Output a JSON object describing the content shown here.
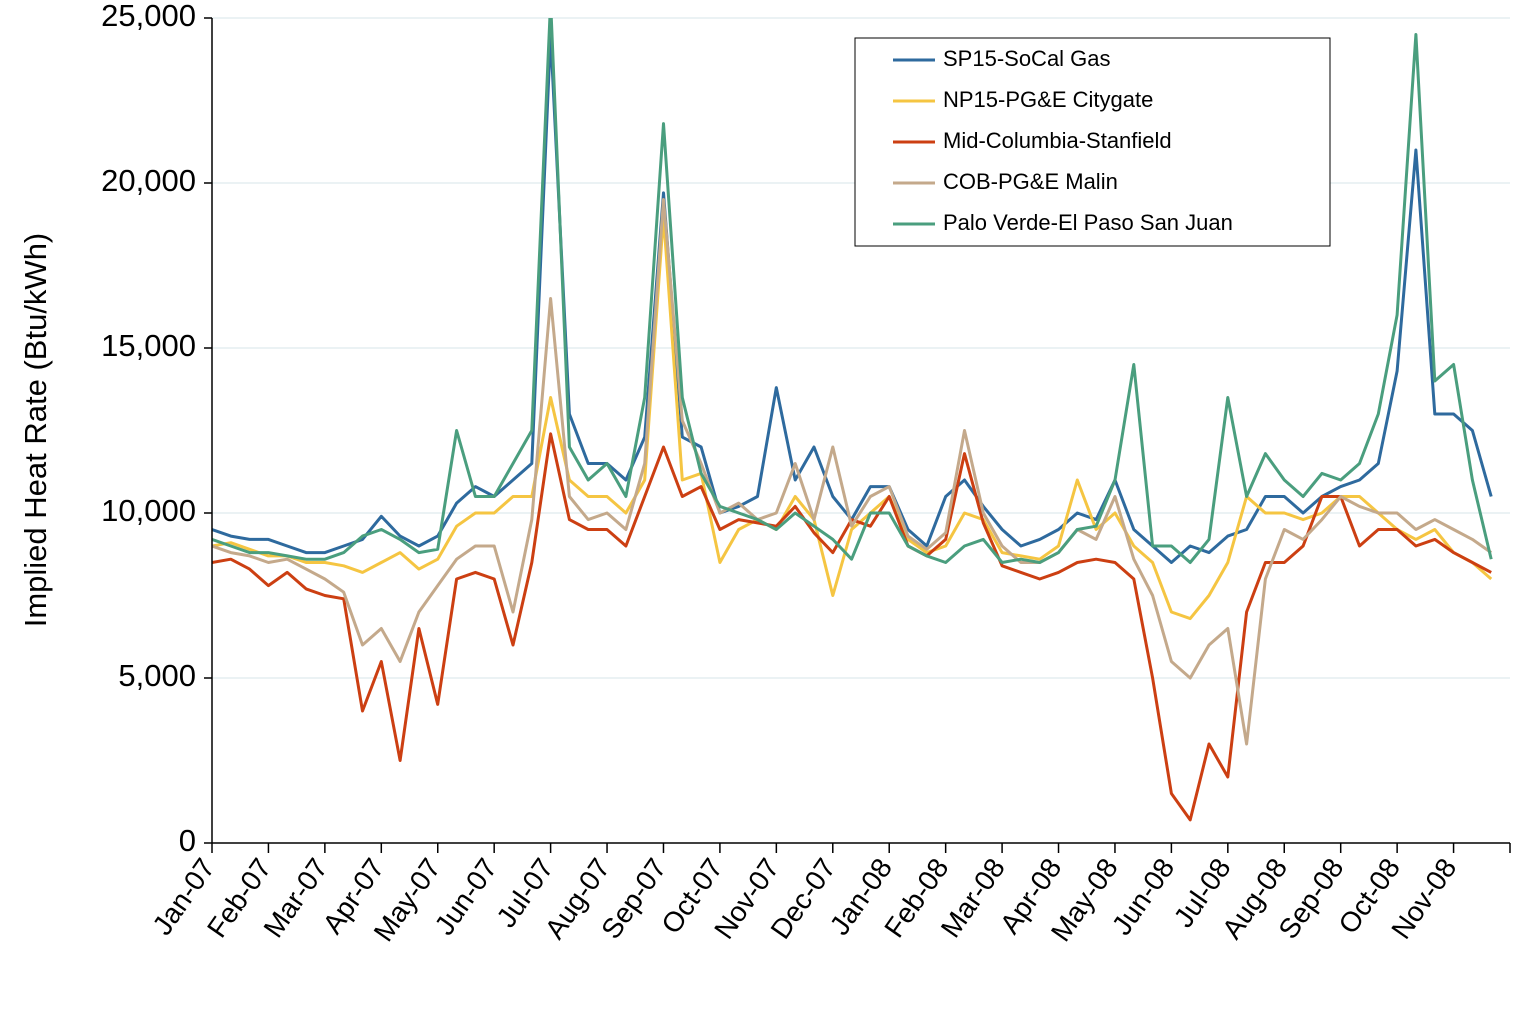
{
  "chart_data": {
    "type": "line",
    "y_label": "Implied Heat Rate (Btu/kWh)",
    "categories": [
      "Jan-07",
      null,
      null,
      "Feb-07",
      null,
      null,
      "Mar-07",
      null,
      null,
      "Apr-07",
      null,
      null,
      "May-07",
      null,
      null,
      "Jun-07",
      null,
      null,
      "Jul-07",
      null,
      null,
      "Aug-07",
      null,
      null,
      "Sep-07",
      null,
      null,
      "Oct-07",
      null,
      null,
      "Nov-07",
      null,
      null,
      "Dec-07",
      null,
      null,
      "Jan-08",
      null,
      null,
      "Feb-08",
      null,
      null,
      "Mar-08",
      null,
      null,
      "Apr-08",
      null,
      null,
      "May-08",
      null,
      null,
      "Jun-08",
      null,
      null,
      "Jul-08",
      null,
      null,
      "Aug-08",
      null,
      null,
      "Sep-08",
      null,
      null,
      "Oct-08",
      null,
      null,
      "Nov-08",
      null,
      null
    ],
    "ylim": [
      0,
      25000
    ],
    "yticks": [
      0,
      {
        "value": 5000,
        "label": "5,000"
      },
      {
        "value": 10000,
        "label": "10,000"
      },
      {
        "value": 15000,
        "label": "15,000"
      },
      {
        "value": 20000,
        "label": "20,000"
      },
      {
        "value": 25000,
        "label": "25,000"
      }
    ],
    "grid": true,
    "legend": "top-right",
    "series": [
      {
        "name": "SP15-SoCal Gas",
        "color": "#2e6a9e",
        "values": [
          9500,
          9300,
          9200,
          9200,
          9000,
          8800,
          8800,
          9000,
          9200,
          9900,
          9300,
          9000,
          9300,
          10300,
          10800,
          10500,
          11000,
          11500,
          24500,
          13000,
          11500,
          11500,
          11000,
          12300,
          19700,
          12300,
          12000,
          10000,
          10200,
          10500,
          13800,
          11000,
          12000,
          10500,
          9800,
          10800,
          10800,
          9500,
          9000,
          10500,
          11000,
          10200,
          9500,
          9000,
          9200,
          9500,
          10000,
          9800,
          11000,
          9500,
          9000,
          8500,
          9000,
          8800,
          9300,
          9500,
          10500,
          10500,
          10000,
          10500,
          10800,
          11000,
          11500,
          14300,
          21000,
          13000,
          13000,
          12500,
          10500
        ]
      },
      {
        "name": "NP15-PG&E Citygate",
        "color": "#f5c542",
        "values": [
          9000,
          9100,
          8900,
          8700,
          8700,
          8500,
          8500,
          8400,
          8200,
          8500,
          8800,
          8300,
          8600,
          9600,
          10000,
          10000,
          10500,
          10500,
          13500,
          11000,
          10500,
          10500,
          10000,
          11000,
          19000,
          11000,
          11200,
          8500,
          9500,
          9800,
          9500,
          10500,
          9800,
          7500,
          9500,
          10000,
          10500,
          9200,
          8800,
          9000,
          10000,
          9800,
          8800,
          8700,
          8600,
          9000,
          11000,
          9500,
          10000,
          9000,
          8500,
          7000,
          6800,
          7500,
          8500,
          10500,
          10000,
          10000,
          9800,
          10000,
          10500,
          10500,
          10000,
          9500,
          9200,
          9500,
          8800,
          8500,
          8000
        ]
      },
      {
        "name": "Mid-Columbia-Stanfield",
        "color": "#cc3f12",
        "values": [
          8500,
          8600,
          8300,
          7800,
          8200,
          7700,
          7500,
          7400,
          4000,
          5500,
          2500,
          6500,
          4200,
          8000,
          8200,
          8000,
          6000,
          8500,
          12400,
          9800,
          9500,
          9500,
          9000,
          10500,
          12000,
          10500,
          10800,
          9500,
          9800,
          9700,
          9600,
          10200,
          9400,
          8800,
          9800,
          9600,
          10500,
          9000,
          8700,
          9200,
          11800,
          9700,
          8400,
          8200,
          8000,
          8200,
          8500,
          8600,
          8500,
          8000,
          5000,
          1500,
          700,
          3000,
          2000,
          7000,
          8500,
          8500,
          9000,
          10500,
          10500,
          9000,
          9500,
          9500,
          9000,
          9200,
          8800,
          8500,
          8200
        ]
      },
      {
        "name": "COB-PG&E Malin",
        "color": "#c4a98b",
        "values": [
          9000,
          8800,
          8700,
          8500,
          8600,
          8300,
          8000,
          7600,
          6000,
          6500,
          5500,
          7000,
          7800,
          8600,
          9000,
          9000,
          7000,
          9800,
          16500,
          10500,
          9800,
          10000,
          9500,
          11500,
          19500,
          12800,
          11500,
          10000,
          10300,
          9800,
          10000,
          11500,
          9800,
          12000,
          9600,
          10500,
          10800,
          9300,
          8900,
          9400,
          12500,
          10000,
          9000,
          8500,
          8500,
          8800,
          9500,
          9200,
          10500,
          8600,
          7500,
          5500,
          5000,
          6000,
          6500,
          3000,
          8000,
          9500,
          9200,
          9800,
          10500,
          10200,
          10000,
          10000,
          9500,
          9800,
          9500,
          9200,
          8800
        ]
      },
      {
        "name": "Palo Verde-El Paso San Juan",
        "color": "#4a9e7e",
        "values": [
          9200,
          9000,
          8800,
          8800,
          8700,
          8600,
          8600,
          8800,
          9300,
          9500,
          9200,
          8800,
          8900,
          12500,
          10500,
          10500,
          11500,
          12500,
          25500,
          12000,
          11000,
          11500,
          10500,
          13500,
          21800,
          13500,
          11200,
          10200,
          10000,
          9800,
          9500,
          10000,
          9600,
          9200,
          8600,
          10000,
          10000,
          9000,
          8700,
          8500,
          9000,
          9200,
          8500,
          8600,
          8500,
          8800,
          9500,
          9600,
          11000,
          14500,
          9000,
          9000,
          8500,
          9200,
          13500,
          10500,
          11800,
          11000,
          10500,
          11200,
          11000,
          11500,
          13000,
          16000,
          24500,
          14000,
          14500,
          11000,
          8600
        ]
      }
    ]
  }
}
